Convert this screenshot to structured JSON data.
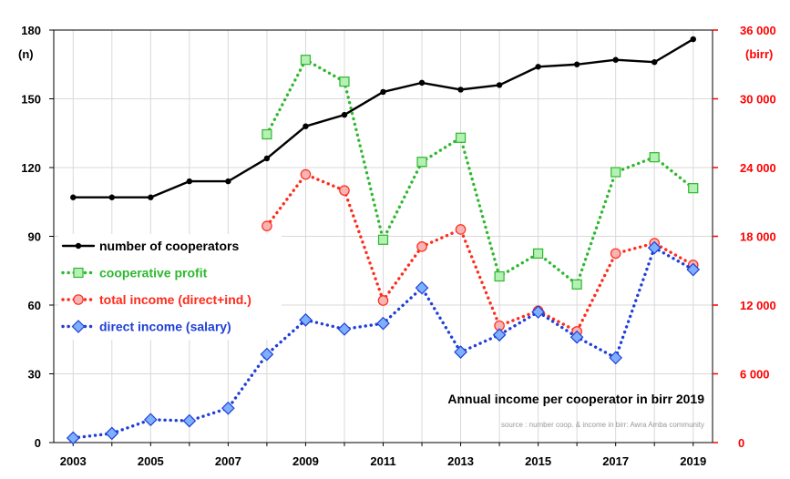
{
  "chart_data": {
    "type": "line",
    "title": "Annual income per cooperator in birr 2019",
    "source": "source : number coop. & income in birr: Awra Amba community",
    "left_axis": {
      "unit": "(n)",
      "range": [
        0,
        180
      ],
      "ticks": [
        "0",
        "30",
        "60",
        "90",
        "120",
        "150",
        "180"
      ]
    },
    "right_axis": {
      "unit": "(birr)",
      "range": [
        0,
        36000
      ],
      "ticks": [
        "0",
        "6 000",
        "12 000",
        "18 000",
        "24 000",
        "30 000",
        "36 000"
      ],
      "color": "#ff0000"
    },
    "x_ticks": [
      "2003",
      "2005",
      "2007",
      "2009",
      "2011",
      "2013",
      "2015",
      "2017",
      "2019"
    ],
    "grid": true,
    "legend_position": "middle-left",
    "series": [
      {
        "name": "number of cooperators",
        "axis": "left",
        "color": "#000000",
        "style": "solid",
        "marker": "dot",
        "x": [
          2003,
          2004,
          2005,
          2006,
          2007,
          2008,
          2009,
          2010,
          2011,
          2012,
          2013,
          2014,
          2015,
          2016,
          2017,
          2018,
          2019
        ],
        "y": [
          107,
          107,
          107,
          114,
          114,
          124,
          138,
          143,
          153,
          157,
          154,
          156,
          164,
          165,
          167,
          166,
          176
        ]
      },
      {
        "name": "cooperative profit",
        "axis": "right",
        "color": "#2eb82e",
        "style": "dotted",
        "marker": "square",
        "x": [
          2008,
          2009,
          2010,
          2011,
          2012,
          2013,
          2014,
          2015,
          2016,
          2017,
          2018,
          2019
        ],
        "y": [
          26900,
          33400,
          31500,
          17700,
          24500,
          26600,
          14500,
          16500,
          13800,
          23600,
          24900,
          22200
        ]
      },
      {
        "name": "total income (direct+ind.)",
        "axis": "right",
        "color": "#ff2a1a",
        "style": "dotted",
        "marker": "circle",
        "x": [
          2008,
          2009,
          2010,
          2011,
          2012,
          2013,
          2014,
          2015,
          2016,
          2017,
          2018,
          2019
        ],
        "y": [
          18900,
          23400,
          22000,
          12400,
          17100,
          18600,
          10200,
          11500,
          9700,
          16500,
          17400,
          15500
        ]
      },
      {
        "name": "direct income (salary)",
        "axis": "right",
        "color": "#1f3fd6",
        "style": "dotted",
        "marker": "diamond",
        "x": [
          2003,
          2004,
          2005,
          2006,
          2007,
          2008,
          2009,
          2010,
          2011,
          2012,
          2013,
          2014,
          2015,
          2016,
          2017,
          2018,
          2019
        ],
        "y": [
          400,
          800,
          2000,
          1900,
          3000,
          7700,
          10700,
          9900,
          10400,
          13500,
          7900,
          9400,
          11400,
          9200,
          7400,
          17000,
          15100
        ]
      }
    ]
  }
}
